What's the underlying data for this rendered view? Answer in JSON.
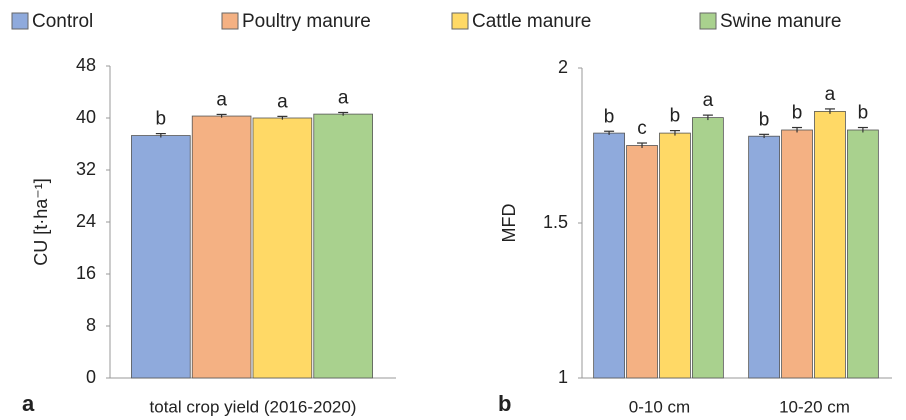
{
  "chart_data": [
    {
      "type": "bar",
      "panel": "a",
      "ylabel": "CU [t·ha⁻¹]",
      "categories": [
        "total crop yield (2016-2020)"
      ],
      "series": [
        {
          "name": "Control",
          "color": "#8faadc",
          "values": [
            37.3
          ],
          "errors": [
            0.3
          ],
          "annotations": [
            "b"
          ]
        },
        {
          "name": "Poultry manure",
          "color": "#f4b183",
          "values": [
            40.3
          ],
          "errors": [
            0.25
          ],
          "annotations": [
            "a"
          ]
        },
        {
          "name": "Cattle manure",
          "color": "#ffd966",
          "values": [
            40.0
          ],
          "errors": [
            0.25
          ],
          "annotations": [
            "a"
          ]
        },
        {
          "name": "Swine manure",
          "color": "#a9d18e",
          "values": [
            40.6
          ],
          "errors": [
            0.25
          ],
          "annotations": [
            "a"
          ]
        }
      ],
      "ylim": [
        0,
        48
      ],
      "yticks": [
        0,
        8,
        16,
        24,
        32,
        40,
        48
      ]
    },
    {
      "type": "bar",
      "panel": "b",
      "ylabel": "MFD",
      "categories": [
        "0-10 cm",
        "10-20 cm"
      ],
      "series": [
        {
          "color": "#8faadc",
          "values": [
            1.79,
            1.78
          ],
          "errors": [
            0.006,
            0.006
          ],
          "annotations": [
            "b",
            "b"
          ]
        },
        {
          "color": "#f4b183",
          "values": [
            1.75,
            1.8
          ],
          "errors": [
            0.008,
            0.008
          ],
          "annotations": [
            "c",
            "b"
          ]
        },
        {
          "color": "#ffd966",
          "values": [
            1.79,
            1.86
          ],
          "errors": [
            0.008,
            0.008
          ],
          "annotations": [
            "b",
            "a"
          ]
        },
        {
          "color": "#a9d18e",
          "values": [
            1.84,
            1.8
          ],
          "errors": [
            0.008,
            0.008
          ],
          "annotations": [
            "a",
            "b"
          ]
        }
      ],
      "ylim": [
        1,
        2
      ],
      "yticks": [
        1,
        1.5,
        2
      ]
    }
  ]
}
